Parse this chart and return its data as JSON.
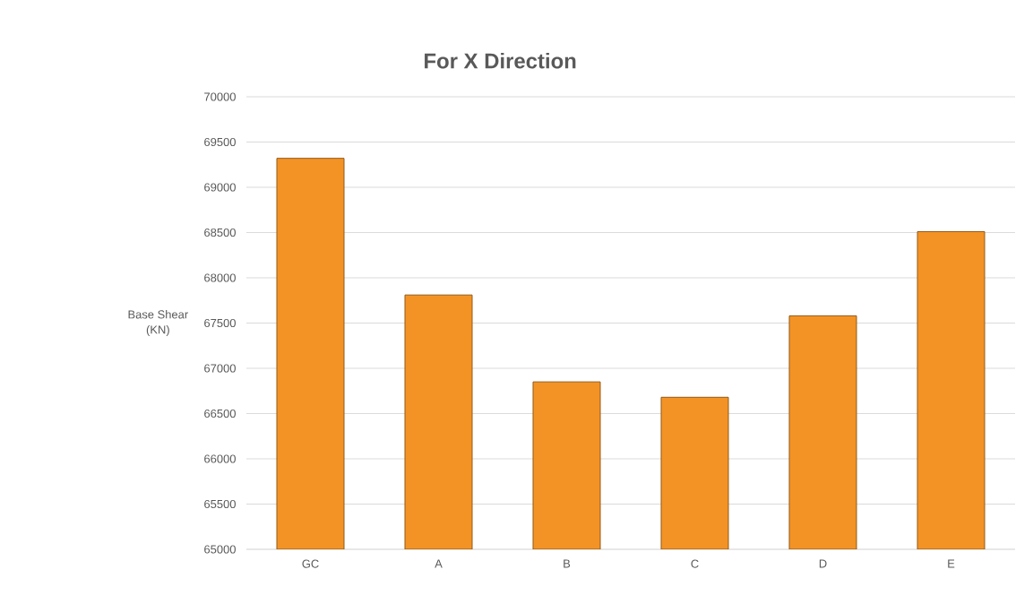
{
  "chart_data": {
    "type": "bar",
    "title": "For X Direction",
    "ylabel": "Base Shear (KN)",
    "categories": [
      "GC",
      "A",
      "B",
      "C",
      "D",
      "E"
    ],
    "values": [
      69320,
      67810,
      66850,
      66680,
      67580,
      68510
    ],
    "color": "#f39325",
    "ylim": [
      65000,
      70000
    ],
    "yticks": [
      65000,
      65500,
      66000,
      66500,
      67000,
      67500,
      68000,
      68500,
      69000,
      69500,
      70000
    ],
    "grid": "y"
  }
}
